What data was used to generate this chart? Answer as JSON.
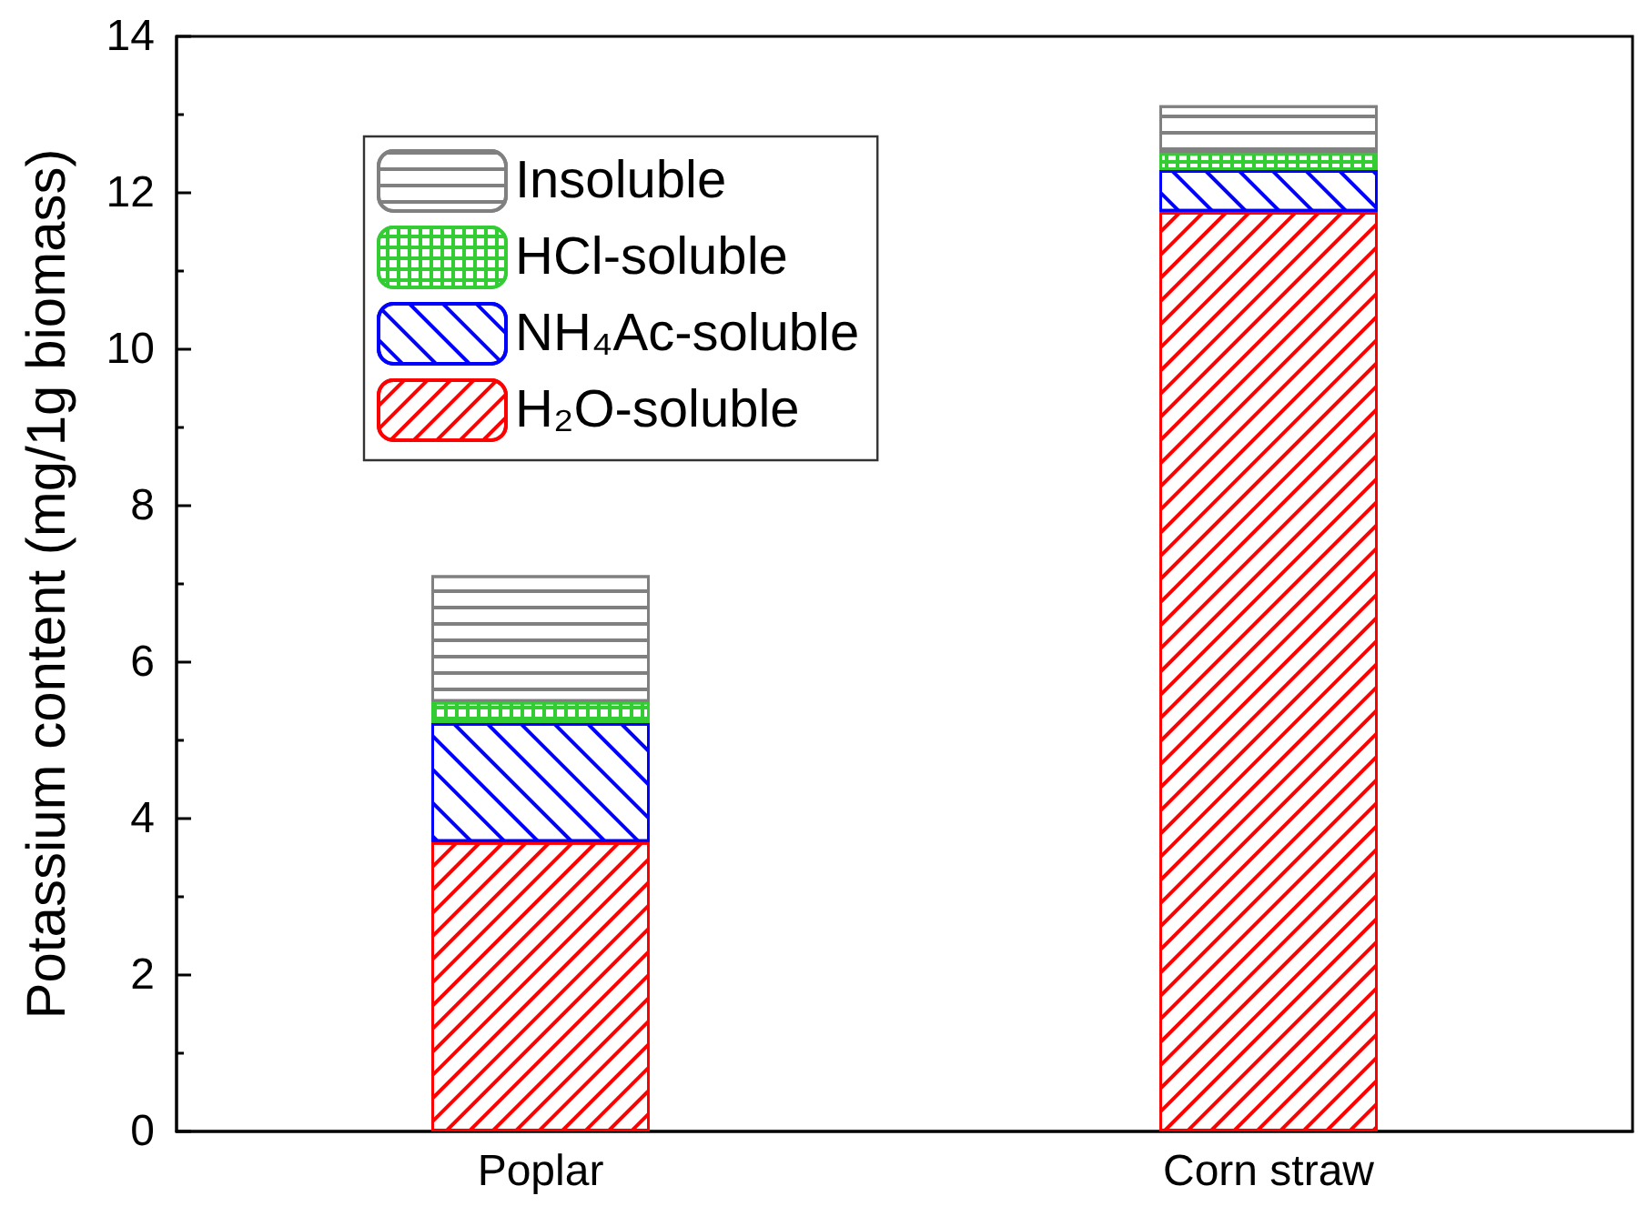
{
  "chart_data": {
    "type": "bar",
    "stacked": true,
    "ylabel": "Potassium content (mg/1g biomass)",
    "categories": [
      "Poplar",
      "Corn straw"
    ],
    "series": [
      {
        "name": "H₂O-soluble",
        "color": "#ff0000",
        "values": [
          3.7,
          11.76
        ]
      },
      {
        "name": "NH₄Ac-soluble",
        "color": "#0000ff",
        "values": [
          1.52,
          0.53
        ]
      },
      {
        "name": "HCl-soluble",
        "color": "#33cc33",
        "values": [
          0.27,
          0.22
        ]
      },
      {
        "name": "Insoluble",
        "color": "#808080",
        "values": [
          1.62,
          0.61
        ]
      }
    ],
    "ylim": [
      0,
      14
    ],
    "yticks": [
      0,
      {
        "value": 1,
        "label": null
      },
      2,
      {
        "value": 3,
        "label": null
      },
      4,
      {
        "value": 5,
        "label": null
      },
      6,
      {
        "value": 7,
        "label": null
      },
      8,
      {
        "value": 9,
        "label": null
      },
      10,
      {
        "value": 11,
        "label": null
      },
      12,
      {
        "value": 13,
        "label": null
      },
      14
    ],
    "grid": false,
    "legend": "top left"
  }
}
